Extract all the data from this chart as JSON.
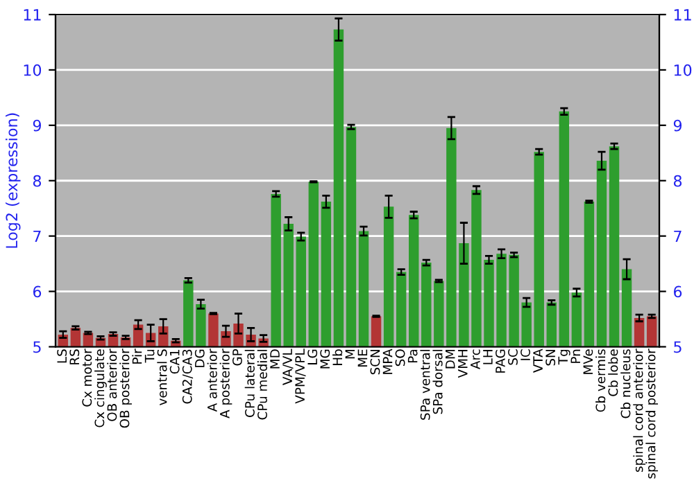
{
  "chart_data": {
    "type": "bar",
    "ylabel": "Log2 (expression)",
    "categories": [
      "LS",
      "RS",
      "Cx motor",
      "Cx cingulate",
      "OB anterior",
      "OB posterior",
      "Pir",
      "Tu",
      "ventral S",
      "CA1",
      "CA2/CA3",
      "DG",
      "A anterior",
      "A posterior",
      "GP",
      "CPu lateral",
      "CPu medial",
      "MD",
      "VA/VL",
      "VPM/VPL",
      "LG",
      "MG",
      "Hb",
      "M",
      "ME",
      "SCN",
      "MPA",
      "SO",
      "Pa",
      "SPa ventral",
      "SPa dorsal",
      "DM",
      "VMH",
      "Arc",
      "LH",
      "PAG",
      "SC",
      "IC",
      "VTA",
      "SN",
      "Tg",
      "Pn",
      "MVe",
      "Cb vermis",
      "Cb lobe",
      "Cb nucleus",
      "spinal cord anterior",
      "spinal cord posterior"
    ],
    "values": [
      5.22,
      5.34,
      5.25,
      5.16,
      5.23,
      5.17,
      5.4,
      5.25,
      5.37,
      5.11,
      6.2,
      5.77,
      5.6,
      5.28,
      5.42,
      5.22,
      5.15,
      7.76,
      7.22,
      6.99,
      7.98,
      7.62,
      10.73,
      8.97,
      7.09,
      5.55,
      7.53,
      6.35,
      7.38,
      6.52,
      6.19,
      8.95,
      6.87,
      7.83,
      6.57,
      6.68,
      6.66,
      5.8,
      8.52,
      5.8,
      9.25,
      5.98,
      7.62,
      8.36,
      8.62,
      6.4,
      5.52,
      5.55
    ],
    "errors": [
      0.06,
      0.03,
      0.02,
      0.03,
      0.03,
      0.03,
      0.08,
      0.15,
      0.13,
      0.03,
      0.04,
      0.08,
      0.01,
      0.1,
      0.18,
      0.12,
      0.06,
      0.05,
      0.12,
      0.07,
      0.01,
      0.11,
      0.2,
      0.04,
      0.08,
      0.01,
      0.2,
      0.05,
      0.06,
      0.05,
      0.02,
      0.2,
      0.37,
      0.07,
      0.07,
      0.08,
      0.04,
      0.08,
      0.05,
      0.04,
      0.06,
      0.07,
      0.02,
      0.16,
      0.05,
      0.18,
      0.06,
      0.03
    ],
    "colors": [
      "#b33535",
      "#b33535",
      "#b33535",
      "#b33535",
      "#b33535",
      "#b33535",
      "#b33535",
      "#b33535",
      "#b33535",
      "#b33535",
      "#2e9e2e",
      "#2e9e2e",
      "#b33535",
      "#b33535",
      "#b33535",
      "#b33535",
      "#b33535",
      "#2e9e2e",
      "#2e9e2e",
      "#2e9e2e",
      "#2e9e2e",
      "#2e9e2e",
      "#2e9e2e",
      "#2e9e2e",
      "#2e9e2e",
      "#b33535",
      "#2e9e2e",
      "#2e9e2e",
      "#2e9e2e",
      "#2e9e2e",
      "#2e9e2e",
      "#2e9e2e",
      "#2e9e2e",
      "#2e9e2e",
      "#2e9e2e",
      "#2e9e2e",
      "#2e9e2e",
      "#2e9e2e",
      "#2e9e2e",
      "#2e9e2e",
      "#2e9e2e",
      "#2e9e2e",
      "#2e9e2e",
      "#2e9e2e",
      "#2e9e2e",
      "#2e9e2e",
      "#b33535",
      "#b33535"
    ],
    "ylim": [
      5,
      11
    ],
    "yticks": [
      5,
      6,
      7,
      8,
      9,
      10,
      11
    ],
    "y2lim": [
      5,
      11
    ],
    "y2ticks": [
      5,
      6,
      7,
      8,
      9,
      10,
      11
    ],
    "grid": "y"
  }
}
